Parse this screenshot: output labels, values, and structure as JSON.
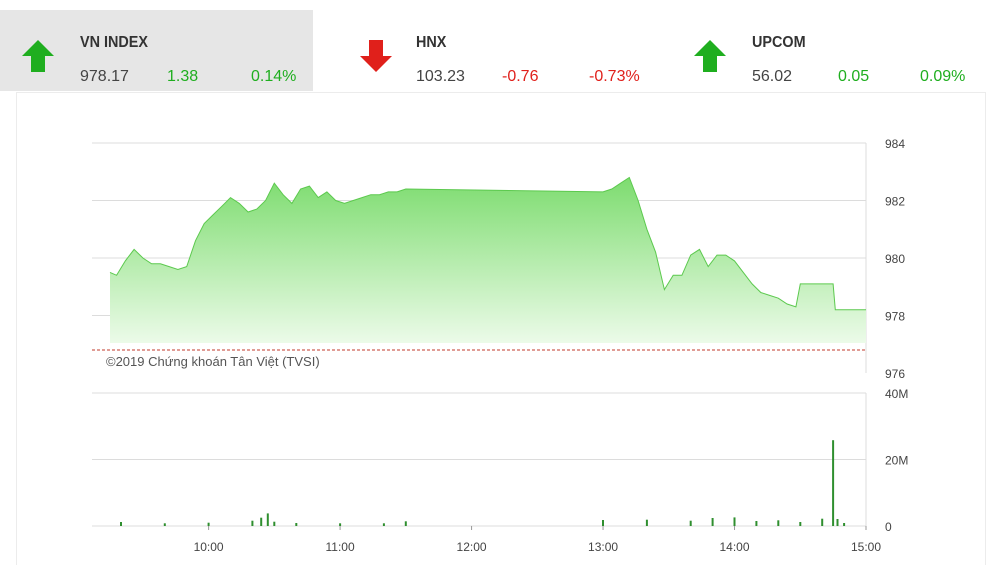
{
  "indices": [
    {
      "name": "VN INDEX",
      "value": "978.17",
      "change": "1.38",
      "percent": "0.14%",
      "direction": "up",
      "active": true
    },
    {
      "name": "HNX",
      "value": "103.23",
      "change": "-0.76",
      "percent": "-0.73%",
      "direction": "down",
      "active": false
    },
    {
      "name": "UPCOM",
      "value": "56.02",
      "change": "0.05",
      "percent": "0.09%",
      "direction": "up",
      "active": false
    }
  ],
  "colors": {
    "up": "#1fae1f",
    "down": "#e0201b",
    "area_top": "#7ddc6f",
    "area_bottom": "#ecfbe9",
    "volume": "#2f8f2f",
    "reference": "#c0392b"
  },
  "chart_data": [
    {
      "type": "area",
      "watermark": "©2019 Chứng khoán Tân Việt (TVSI)",
      "reference_value": 976.8,
      "ylim": [
        976,
        984
      ],
      "yticks": [
        "976",
        "978",
        "980",
        "982",
        "984"
      ],
      "x_range": [
        "09:15",
        "15:00"
      ],
      "xticks": [
        "10:00",
        "11:00",
        "12:00",
        "13:00",
        "14:00",
        "15:00"
      ],
      "series": [
        {
          "x": [
            "09:15",
            "09:18",
            "09:22",
            "09:26",
            "09:30",
            "09:34",
            "09:38",
            "09:42",
            "09:46",
            "09:50",
            "09:54",
            "09:58",
            "10:02",
            "10:06",
            "10:10",
            "10:14",
            "10:18",
            "10:22",
            "10:26",
            "10:30",
            "10:34",
            "10:38",
            "10:42",
            "10:46",
            "10:50",
            "10:54",
            "10:58",
            "11:02",
            "11:06",
            "11:10",
            "11:14",
            "11:18",
            "11:22",
            "11:26",
            "11:30",
            "13:00",
            "13:04",
            "13:08",
            "13:12",
            "13:16",
            "13:20",
            "13:24",
            "13:28",
            "13:32",
            "13:36",
            "13:40",
            "13:44",
            "13:48",
            "13:52",
            "13:56",
            "14:00",
            "14:04",
            "14:08",
            "14:12",
            "14:16",
            "14:20",
            "14:24",
            "14:28",
            "14:30",
            "14:31",
            "14:45",
            "14:46",
            "14:47",
            "15:00"
          ],
          "y": [
            979.5,
            979.4,
            979.9,
            980.3,
            980.0,
            979.8,
            979.8,
            979.7,
            979.6,
            979.7,
            980.6,
            981.2,
            981.5,
            981.8,
            982.1,
            981.9,
            981.6,
            981.7,
            982.0,
            982.6,
            982.2,
            981.9,
            982.4,
            982.5,
            982.1,
            982.3,
            982.0,
            981.9,
            982.0,
            982.1,
            982.2,
            982.2,
            982.3,
            982.3,
            982.4,
            982.3,
            982.4,
            982.6,
            982.8,
            982.0,
            981.0,
            980.2,
            978.9,
            979.4,
            979.4,
            980.1,
            980.3,
            979.7,
            980.1,
            980.1,
            979.9,
            979.5,
            979.1,
            978.8,
            978.7,
            978.6,
            978.4,
            978.3,
            979.1,
            979.1,
            979.1,
            978.2,
            978.2,
            978.2
          ]
        }
      ]
    },
    {
      "type": "bar",
      "ylim": [
        0,
        40
      ],
      "yticks": [
        "0",
        "20M",
        "40M"
      ],
      "yunit": "M",
      "x_range": [
        "09:15",
        "15:00"
      ],
      "x": [
        "09:20",
        "09:40",
        "10:00",
        "10:20",
        "10:24",
        "10:27",
        "10:30",
        "10:40",
        "11:00",
        "11:20",
        "11:30",
        "13:00",
        "13:20",
        "13:40",
        "13:50",
        "14:00",
        "14:10",
        "14:20",
        "14:30",
        "14:40",
        "14:45",
        "14:47",
        "14:50"
      ],
      "values": [
        1.2,
        0.8,
        1.0,
        1.6,
        2.5,
        3.8,
        1.3,
        0.9,
        0.8,
        0.8,
        1.4,
        1.8,
        1.9,
        1.6,
        2.4,
        2.6,
        1.5,
        1.7,
        1.2,
        2.2,
        25.8,
        2.1,
        0.9
      ]
    }
  ]
}
